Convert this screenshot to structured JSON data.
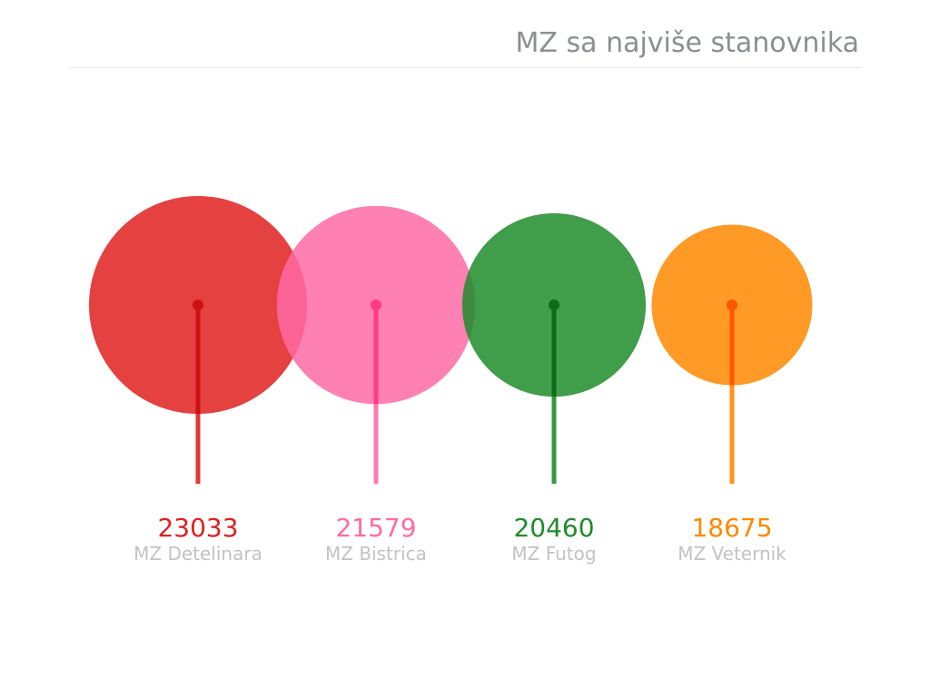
{
  "chart_data": {
    "type": "bubble",
    "title": "MZ sa najviše stanovnika",
    "categories": [
      "MZ Detelinara",
      "MZ Bistrica",
      "MZ Futog",
      "MZ Veternik"
    ],
    "values": [
      23033,
      21579,
      20460,
      18675
    ],
    "colors": [
      "#e02020",
      "#ff6aa4",
      "#1f8c2a",
      "#ff8800"
    ],
    "stem_colors": [
      "#cc1111",
      "#ff3a86",
      "#0f6a1a",
      "#ff5500"
    ]
  }
}
